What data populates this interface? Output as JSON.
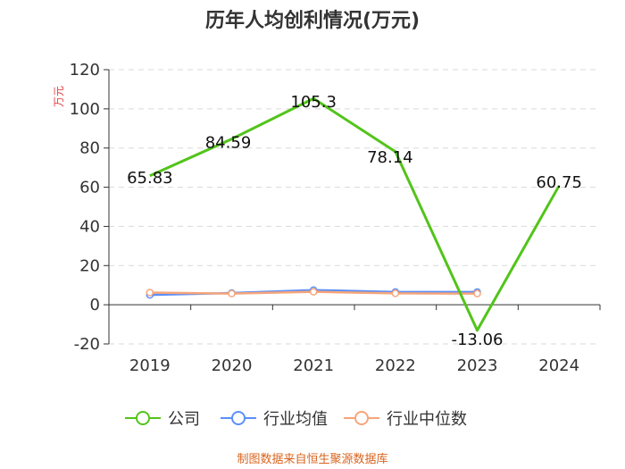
{
  "chart_data": {
    "type": "line",
    "title": "历年人均创利情况(万元)",
    "ylabel": "万元",
    "xlabel": "",
    "categories": [
      "2019",
      "2020",
      "2021",
      "2022",
      "2023",
      "2024"
    ],
    "ylim": [
      -20,
      120
    ],
    "yticks": [
      -20,
      0,
      20,
      40,
      60,
      80,
      100,
      120
    ],
    "grid": true,
    "legend_position": "bottom",
    "series": [
      {
        "name": "公司",
        "color": "#52c41a",
        "values": [
          65.83,
          84.59,
          105.3,
          78.14,
          -13.06,
          60.75
        ],
        "labels": [
          "65.83",
          "84.59",
          "105.3",
          "78.14",
          "-13.06",
          "60.75"
        ]
      },
      {
        "name": "行业均值",
        "color": "#5b8ff9",
        "values": [
          5.0,
          6.0,
          7.5,
          6.5,
          6.5,
          null
        ]
      },
      {
        "name": "行业中位数",
        "color": "#f6a57a",
        "values": [
          6.2,
          5.7,
          6.6,
          5.8,
          5.7,
          null
        ]
      }
    ]
  },
  "source": "制图数据来自恒生聚源数据库"
}
